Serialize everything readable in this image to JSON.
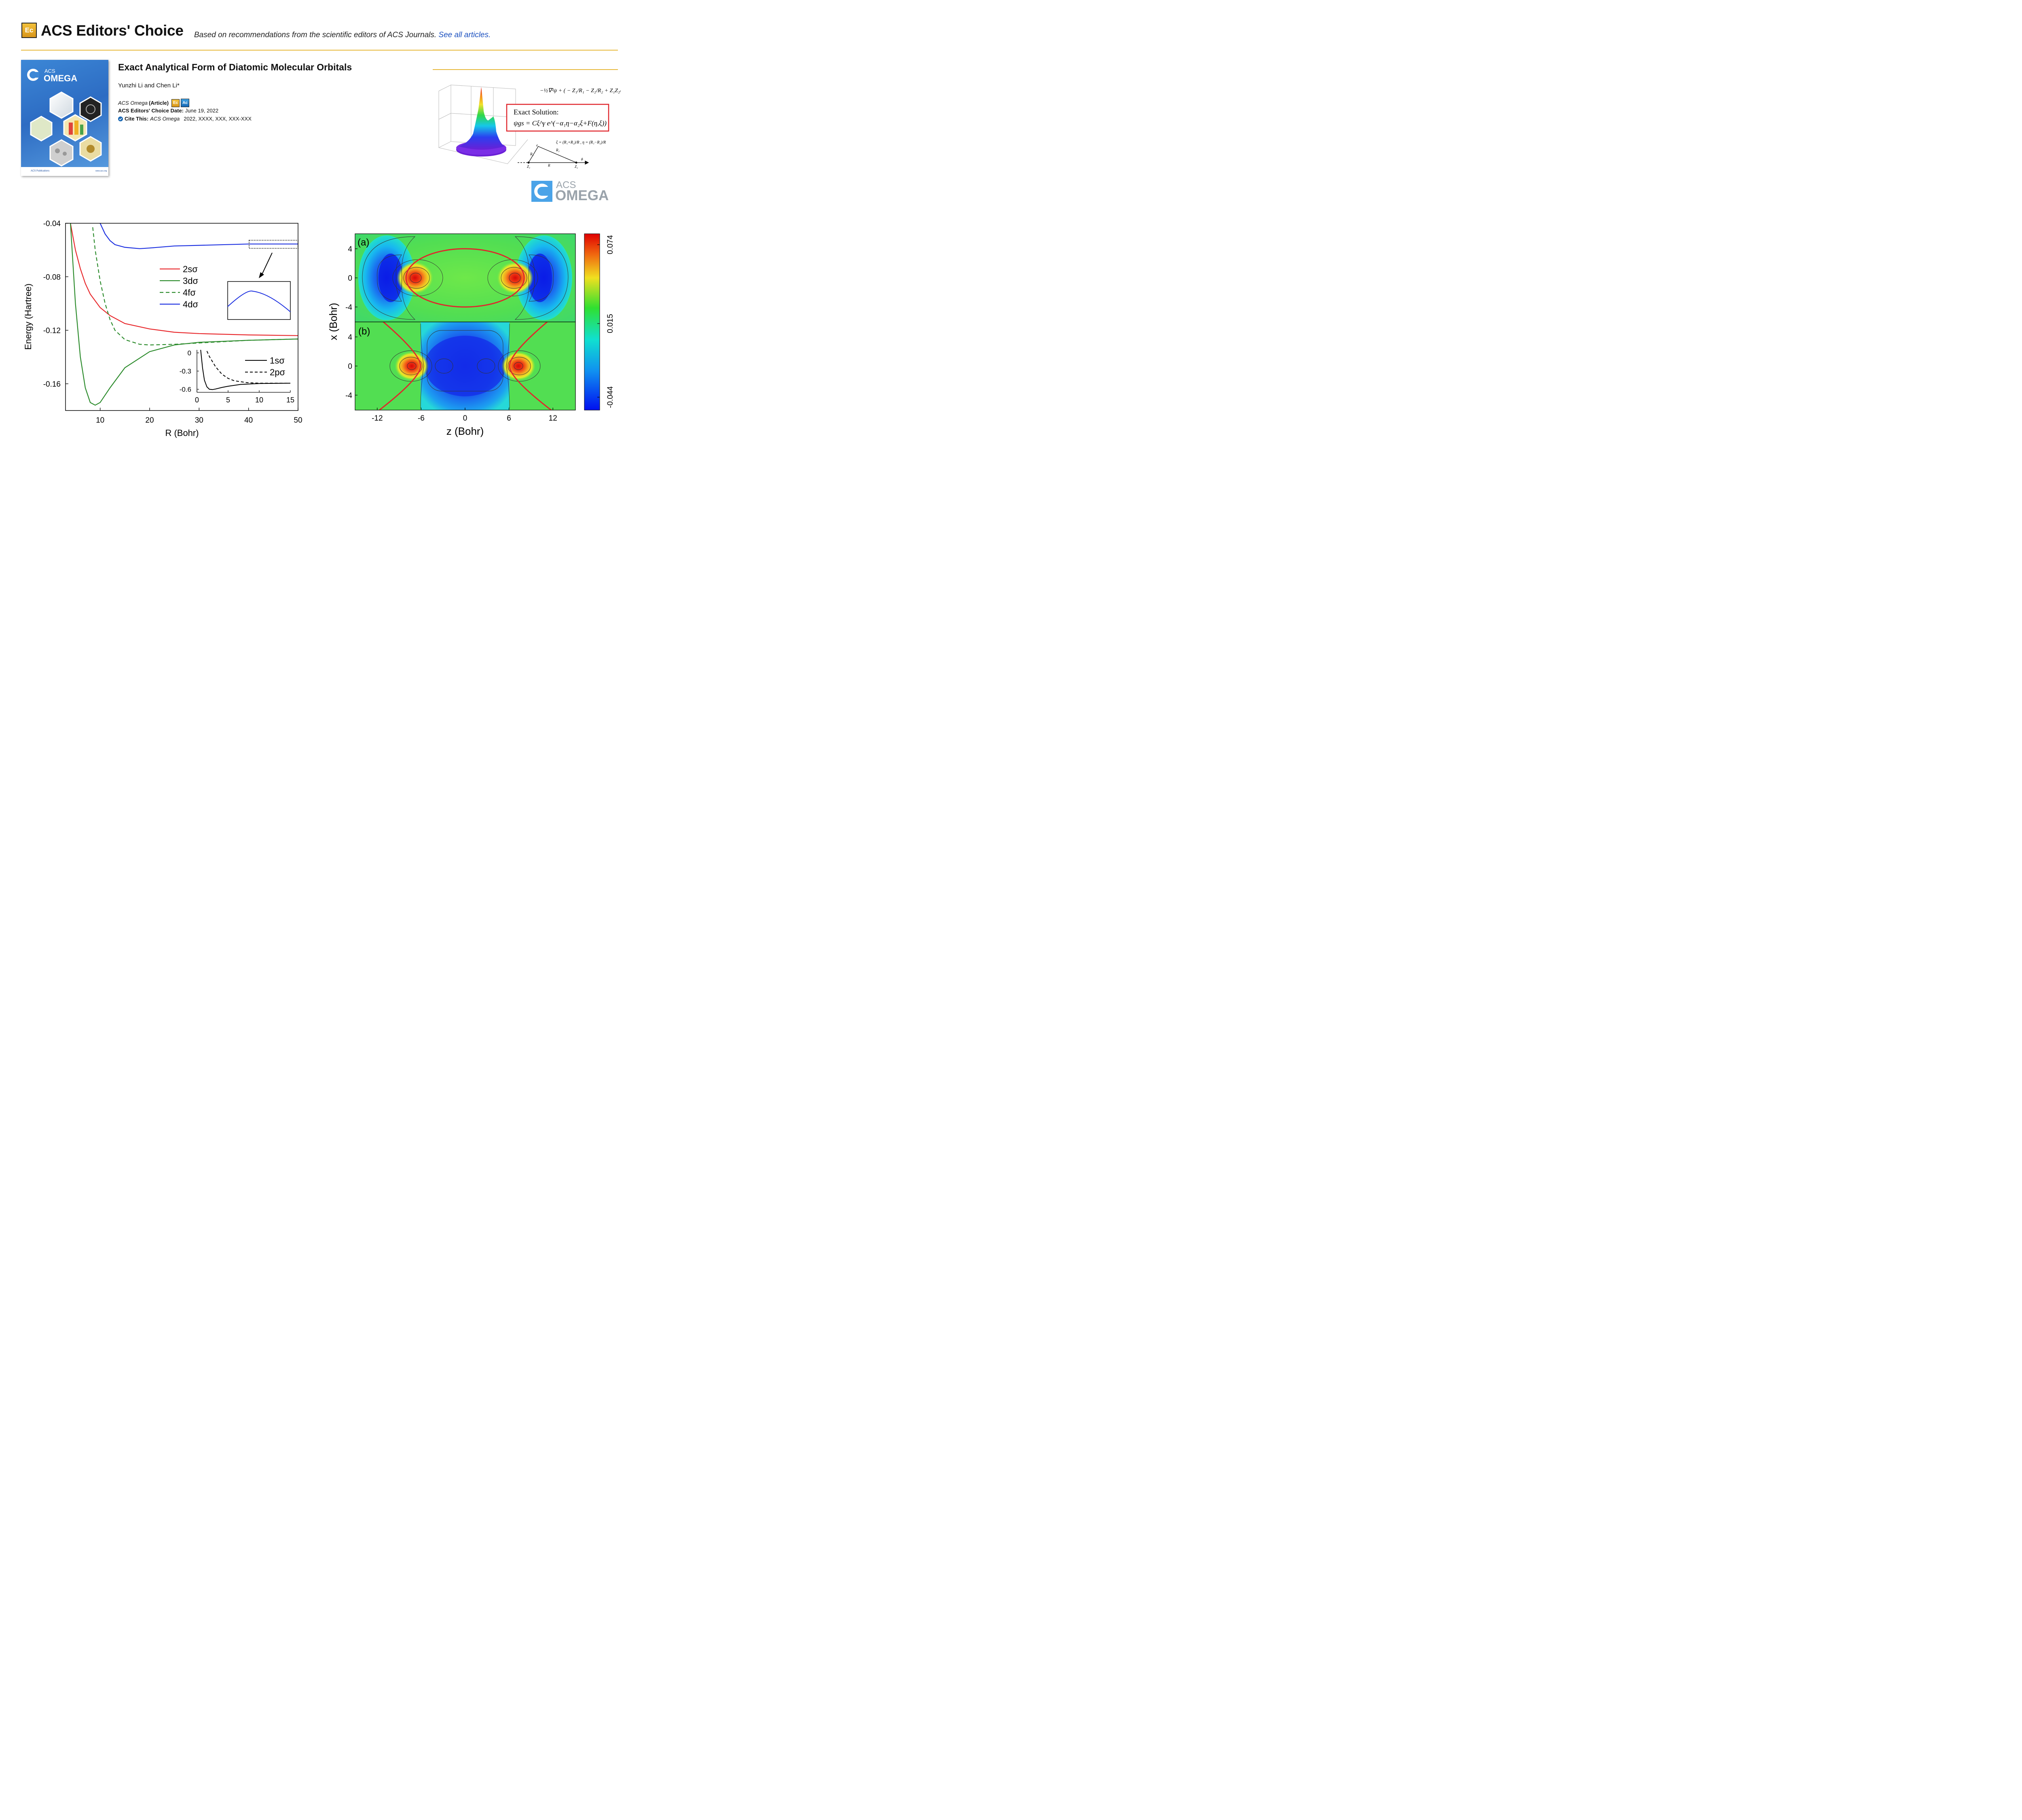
{
  "header": {
    "badge": "Ec",
    "title": "ACS Editors' Choice",
    "tagline": "Based on recommendations from the scientific editors of ACS Journals.",
    "tagline_link": "See all articles."
  },
  "cover": {
    "brand_top": "ACS",
    "brand_bottom": "OMEGA",
    "publisher": "ACS Publications",
    "site": "www.acs.org"
  },
  "article": {
    "title": "Exact Analytical Form of Diatomic Molecular Orbitals",
    "authors": "Yunzhi Li and Chen Li*",
    "journal": "ACS Omega",
    "type": "(Article)",
    "badges": [
      "Ec",
      "Ac"
    ],
    "ec_date_label": "ACS Editors' Choice Date:",
    "ec_date": "June 19, 2022",
    "cite_label": "Cite This:",
    "cite_journal": "ACS Omega",
    "cite_ref": "2022, XXXX, XXX, XXX-XXX"
  },
  "toc_graphic": {
    "box_title": "Exact Solution:",
    "logo_top": "ACS",
    "logo_bottom": "OMEGA"
  },
  "chart_data": [
    {
      "type": "line",
      "xlabel": "R (Bohr)",
      "ylabel": "Energy (Hartree)",
      "xlim": [
        3,
        50
      ],
      "ylim": [
        -0.18,
        -0.04
      ],
      "xticks": [
        10,
        20,
        30,
        40,
        50
      ],
      "yticks": [
        -0.04,
        -0.08,
        -0.12,
        -0.16
      ],
      "legend": "upper-middle",
      "series": [
        {
          "name": "2sσ",
          "color": "#e8262a",
          "style": "solid",
          "x": [
            4,
            5,
            6,
            7,
            8,
            10,
            12,
            15,
            20,
            25,
            30,
            40,
            50
          ],
          "y": [
            -0.04,
            -0.06,
            -0.074,
            -0.085,
            -0.093,
            -0.103,
            -0.109,
            -0.115,
            -0.119,
            -0.1215,
            -0.1225,
            -0.1235,
            -0.124
          ]
        },
        {
          "name": "3dσ",
          "color": "#2a8a2a",
          "style": "solid",
          "x": [
            4,
            5,
            6,
            7,
            8,
            9,
            10,
            12,
            15,
            20,
            25,
            30,
            40,
            50
          ],
          "y": [
            -0.04,
            -0.1,
            -0.14,
            -0.163,
            -0.174,
            -0.176,
            -0.174,
            -0.163,
            -0.148,
            -0.136,
            -0.131,
            -0.129,
            -0.1275,
            -0.1265
          ]
        },
        {
          "name": "4fσ",
          "color": "#2a8a2a",
          "style": "dashed",
          "x": [
            8.5,
            9,
            10,
            11,
            12,
            13,
            15,
            18,
            20,
            25,
            30,
            40,
            50
          ],
          "y": [
            -0.043,
            -0.06,
            -0.083,
            -0.1,
            -0.112,
            -0.12,
            -0.127,
            -0.1305,
            -0.131,
            -0.1305,
            -0.1295,
            -0.1275,
            -0.1265
          ]
        },
        {
          "name": "4dσ",
          "color": "#1a2ee0",
          "style": "solid",
          "x": [
            10,
            11,
            12,
            13,
            15,
            18,
            20,
            25,
            30,
            40,
            50
          ],
          "y": [
            -0.04,
            -0.048,
            -0.053,
            -0.056,
            -0.058,
            -0.059,
            -0.0585,
            -0.057,
            -0.0565,
            -0.0555,
            -0.0555
          ]
        }
      ],
      "inset": {
        "xlim": [
          0,
          15
        ],
        "ylim": [
          -0.65,
          0.05
        ],
        "xticks": [
          0,
          5,
          10,
          15
        ],
        "yticks": [
          0,
          -0.3,
          -0.6
        ],
        "series": [
          {
            "name": "1sσ",
            "color": "#000000",
            "style": "solid",
            "x": [
              0.6,
              0.9,
              1.2,
              1.6,
              2.0,
              2.5,
              3,
              4,
              5,
              7,
              10,
              15
            ],
            "y": [
              0.05,
              -0.25,
              -0.45,
              -0.56,
              -0.6,
              -0.605,
              -0.595,
              -0.57,
              -0.55,
              -0.52,
              -0.505,
              -0.5
            ]
          },
          {
            "name": "2pσ",
            "color": "#000000",
            "style": "dashed",
            "x": [
              1.6,
              2,
              3,
              4,
              5,
              6,
              8,
              10,
              15
            ],
            "y": [
              0.03,
              -0.06,
              -0.23,
              -0.35,
              -0.42,
              -0.46,
              -0.49,
              -0.5,
              -0.5
            ]
          }
        ]
      }
    },
    {
      "type": "heatmap",
      "panels": [
        "(a)",
        "(b)"
      ],
      "xlabel": "z (Bohr)",
      "ylabel": "x (Bohr)",
      "xticks": [
        -12,
        -6,
        0,
        6,
        12
      ],
      "yticks_a": [
        4,
        0,
        -4
      ],
      "yticks_b": [
        4,
        0,
        -4
      ],
      "colorbar_ticks": [
        "0.074",
        "0.015",
        "-0.044"
      ],
      "colorbar_range": [
        -0.044,
        0.074
      ]
    }
  ]
}
